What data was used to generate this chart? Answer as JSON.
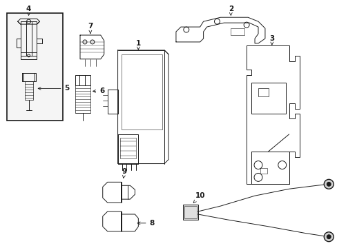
{
  "bg_color": "#ffffff",
  "line_color": "#1a1a1a",
  "fig_width": 4.89,
  "fig_height": 3.6,
  "dpi": 100,
  "label_fontsize": 7.5,
  "lw": 0.7
}
